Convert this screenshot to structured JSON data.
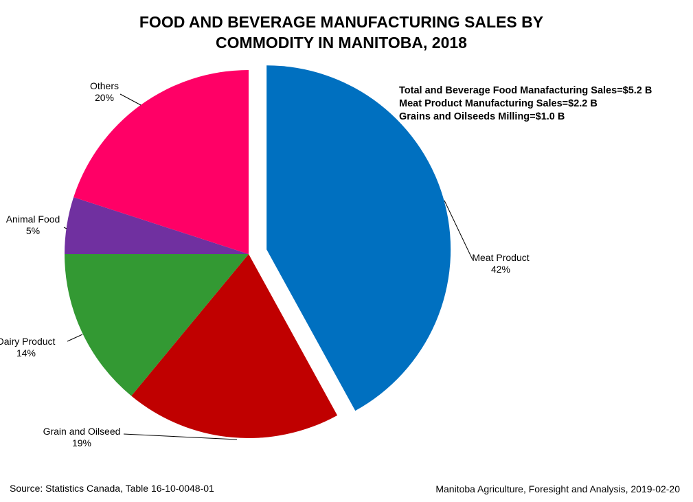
{
  "chart_data": {
    "type": "pie",
    "title_lines": [
      "FOOD AND BEVERAGE MANUFACTURING SALES BY",
      "COMMODITY IN MANITOBA, 2018"
    ],
    "categories": [
      "Meat Product",
      "Grain and Oilseed",
      "Dairy Product",
      "Animal Food",
      "Others"
    ],
    "values": [
      42,
      19,
      14,
      5,
      20
    ],
    "value_labels": [
      "42%",
      "19%",
      "14%",
      "5%",
      "20%"
    ],
    "colors": [
      "#0070C0",
      "#C00000",
      "#339933",
      "#7030A0",
      "#FF0066"
    ],
    "exploded": [
      "Meat Product"
    ],
    "annotations": [
      "Total and Beverage Food Manafacturing Sales=$5.2 B",
      "Meat Product Manufacturing Sales=$2.2 B",
      "Grains and Oilseeds Milling=$1.0 B"
    ]
  },
  "footer": {
    "source": "Source: Statistics Canada, Table 16-10-0048-01",
    "credit": "Manitoba Agriculture, Foresight and Analysis, 2019-02-20"
  }
}
